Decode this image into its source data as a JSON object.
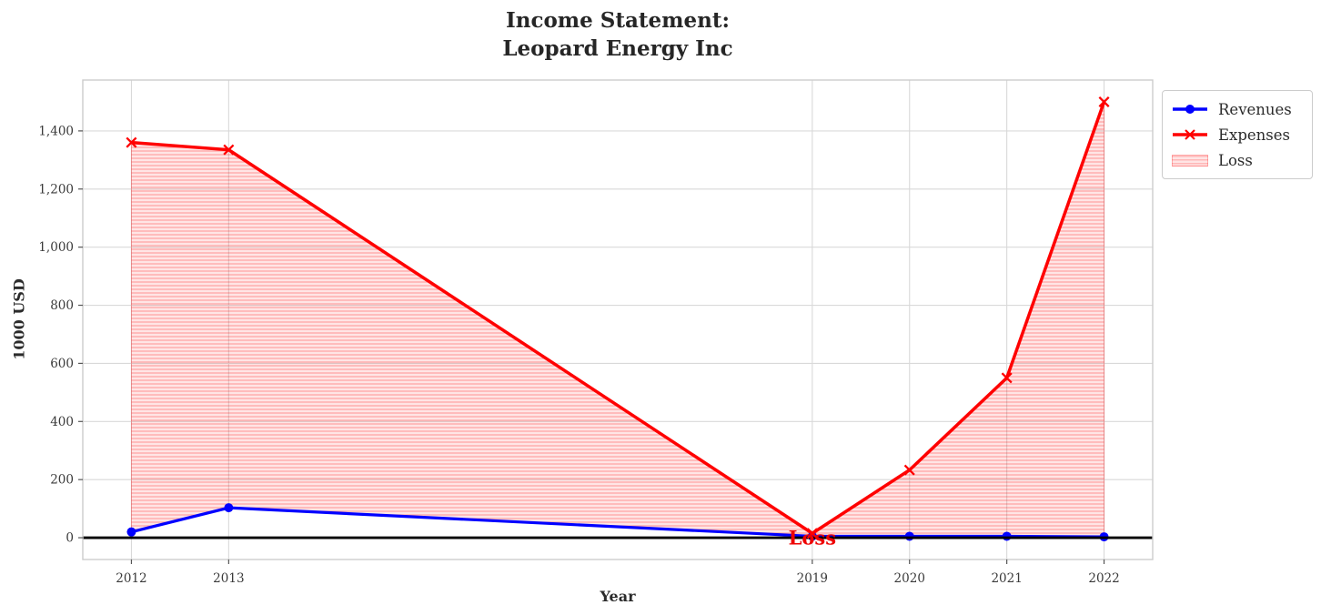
{
  "chart_data": {
    "type": "line",
    "title_line1": "Income Statement:",
    "title_line2": "Leopard Energy Inc",
    "xlabel": "Year",
    "ylabel": "1000 USD",
    "x": [
      2012,
      2013,
      2019,
      2020,
      2021,
      2022
    ],
    "xtick_labels": [
      "2012",
      "2013",
      "2019",
      "2020",
      "2021",
      "2022"
    ],
    "yticks": [
      0,
      200,
      400,
      600,
      800,
      1000,
      1200,
      1400
    ],
    "ytick_labels": [
      "0",
      "200",
      "400",
      "600",
      "800",
      "1,000",
      "1,200",
      "1,400"
    ],
    "xlim": [
      2011.5,
      2022.5
    ],
    "ylim": [
      -75,
      1575
    ],
    "grid": true,
    "series": [
      {
        "name": "Revenues",
        "color": "#0000ff",
        "marker": "circle",
        "values": [
          20,
          103,
          5,
          5,
          5,
          3
        ]
      },
      {
        "name": "Expenses",
        "color": "#ff0000",
        "marker": "x",
        "values": [
          1360,
          1335,
          15,
          233,
          550,
          1500
        ]
      }
    ],
    "loss_fill": {
      "label": "Loss",
      "between": [
        "Expenses",
        "Revenues"
      ],
      "fill_color": "rgba(255,0,0,0.10)",
      "hatch_color": "rgba(255,0,0,0.30)",
      "hatch": "horizontal"
    },
    "annotation": {
      "text": "Loss",
      "x": 2019,
      "y": 0,
      "color": "#ee0000"
    },
    "zero_line_color": "#000000",
    "grid_color": "#d9d9d9",
    "spine_color": "#cccccc",
    "tick_color": "#3a3a3a",
    "legend_position": "upper-right-outside"
  }
}
